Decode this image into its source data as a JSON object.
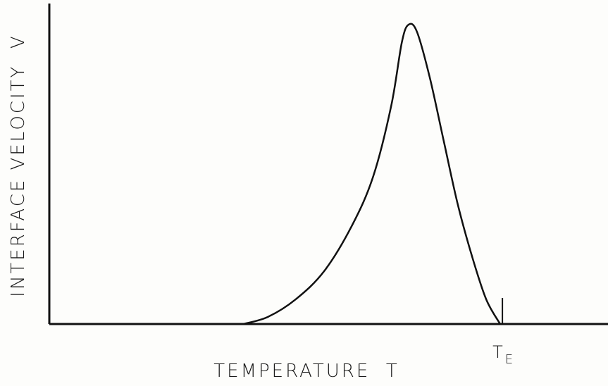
{
  "chart_data": {
    "type": "line",
    "xlabel": "TEMPERATURE  T",
    "ylabel": "INTERFACE VELOCITY  V",
    "xlim": [
      0,
      100
    ],
    "ylim": [
      0,
      100
    ],
    "x": [
      34.7,
      39.1,
      44.1,
      49.2,
      54.2,
      58.0,
      61.2,
      63.1,
      64.3,
      65.8,
      68.1,
      70.6,
      73.1,
      75.7,
      78.2,
      80.7
    ],
    "series": [
      {
        "color": "#111111",
        "values": [
          0,
          2.2,
          7.7,
          16.5,
          30.8,
          46.2,
          68.1,
          87.9,
          93.4,
          91.2,
          76.9,
          57.1,
          37.4,
          20.9,
          7.7,
          0
        ]
      }
    ],
    "annotations": [
      {
        "label": "T",
        "subscript": "E",
        "x": 81.1
      }
    ]
  }
}
